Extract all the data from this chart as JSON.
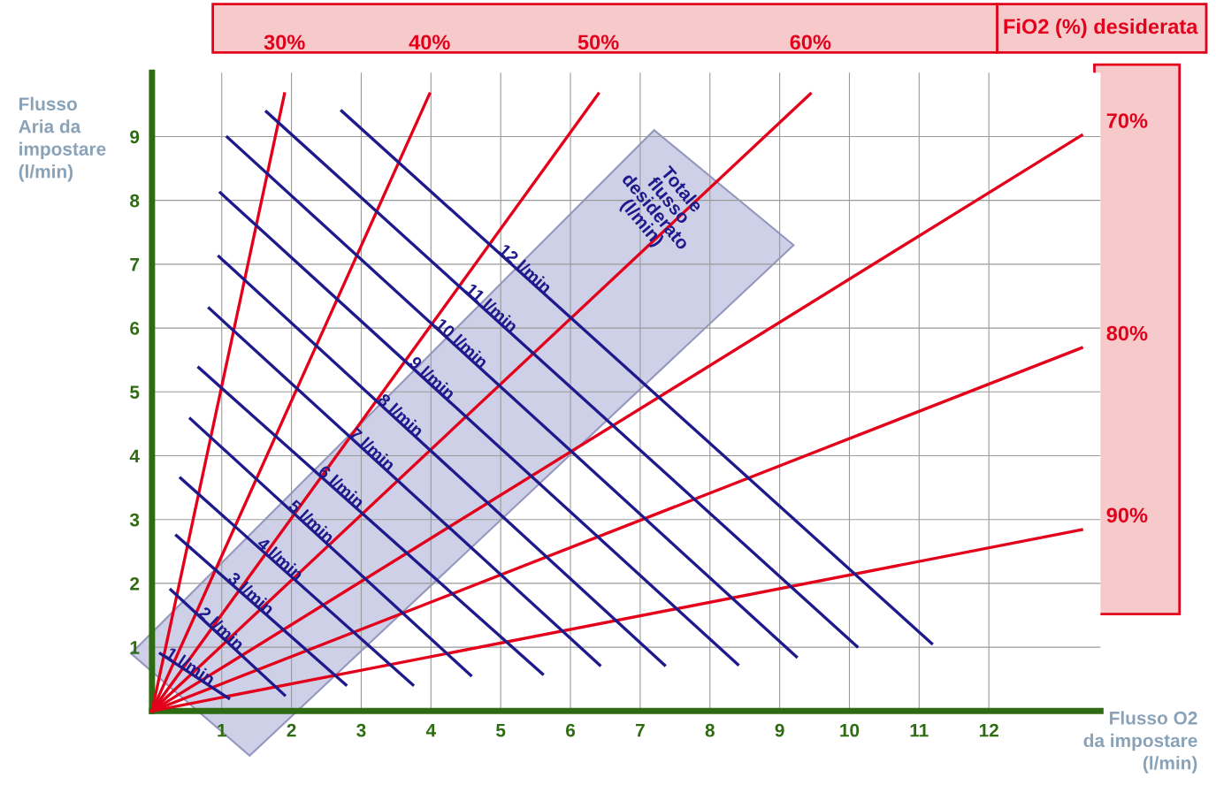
{
  "chart_data": {
    "type": "line",
    "xlabel": "Flusso O2\nda impostare\n(l/min)",
    "ylabel": "Flusso\nAria da\nimpostare\n(l/min)",
    "xlim": [
      0,
      13.6
    ],
    "ylim": [
      0,
      10
    ],
    "xticks": [
      1,
      2,
      3,
      4,
      5,
      6,
      7,
      8,
      9,
      10,
      11,
      12
    ],
    "yticks": [
      1,
      2,
      3,
      4,
      5,
      6,
      7,
      8,
      9
    ],
    "grid": true,
    "legend": false,
    "marker": "none",
    "line_style": "solid",
    "annotations": [
      "FiO2 (%) desiderata",
      "Totale\nflusso\ndesiderato\n(l/min)"
    ],
    "series": [
      {
        "name": "30%",
        "color": "#e3001b",
        "x": [
          0,
          1.9
        ],
        "values": [
          0,
          9.67
        ]
      },
      {
        "name": "40%",
        "color": "#e3001b",
        "x": [
          0,
          3.98
        ],
        "values": [
          0,
          9.67
        ]
      },
      {
        "name": "50%",
        "color": "#e3001b",
        "x": [
          0,
          6.4
        ],
        "values": [
          0,
          9.67
        ]
      },
      {
        "name": "60%",
        "color": "#e3001b",
        "x": [
          0,
          9.44
        ],
        "values": [
          0,
          9.67
        ]
      },
      {
        "name": "70%",
        "color": "#e3001b",
        "x": [
          0,
          13.33
        ],
        "values": [
          0,
          9.02
        ]
      },
      {
        "name": "80%",
        "color": "#e3001b",
        "x": [
          0,
          13.33
        ],
        "values": [
          0,
          5.69
        ]
      },
      {
        "name": "90%",
        "color": "#e3001b",
        "x": [
          0,
          13.33
        ],
        "values": [
          0,
          2.84
        ]
      },
      {
        "name": "1 l/min",
        "color": "#1f1a8c",
        "x": [
          0.12,
          1.1
        ],
        "values": [
          0.9,
          0.2
        ]
      },
      {
        "name": "2 l/min",
        "color": "#1f1a8c",
        "x": [
          0.27,
          1.9
        ],
        "values": [
          1.9,
          0.25
        ]
      },
      {
        "name": "3 l/min",
        "color": "#1f1a8c",
        "x": [
          0.35,
          2.78
        ],
        "values": [
          2.75,
          0.41
        ]
      },
      {
        "name": "4 l/min",
        "color": "#1f1a8c",
        "x": [
          0.41,
          3.74
        ],
        "values": [
          3.65,
          0.41
        ]
      },
      {
        "name": "5 l/min",
        "color": "#1f1a8c",
        "x": [
          0.55,
          4.57
        ],
        "values": [
          4.58,
          0.56
        ]
      },
      {
        "name": "6 l/min",
        "color": "#1f1a8c",
        "x": [
          0.67,
          5.6
        ],
        "values": [
          5.38,
          0.58
        ]
      },
      {
        "name": "7 l/min",
        "color": "#1f1a8c",
        "x": [
          0.82,
          6.42
        ],
        "values": [
          6.31,
          0.72
        ]
      },
      {
        "name": "8 l/min",
        "color": "#1f1a8c",
        "x": [
          0.96,
          7.35
        ],
        "values": [
          7.12,
          0.72
        ]
      },
      {
        "name": "9 l/min",
        "color": "#1f1a8c",
        "x": [
          0.98,
          8.4
        ],
        "values": [
          8.12,
          0.73
        ]
      },
      {
        "name": "10 l/min",
        "color": "#1f1a8c",
        "x": [
          1.08,
          9.24
        ],
        "values": [
          8.99,
          0.85
        ]
      },
      {
        "name": "11 l/min",
        "color": "#1f1a8c",
        "x": [
          1.64,
          10.11
        ],
        "values": [
          9.39,
          1.01
        ]
      },
      {
        "name": "12 l/min",
        "color": "#1f1a8c",
        "x": [
          2.72,
          11.18
        ],
        "values": [
          9.4,
          1.06
        ]
      }
    ]
  }
}
